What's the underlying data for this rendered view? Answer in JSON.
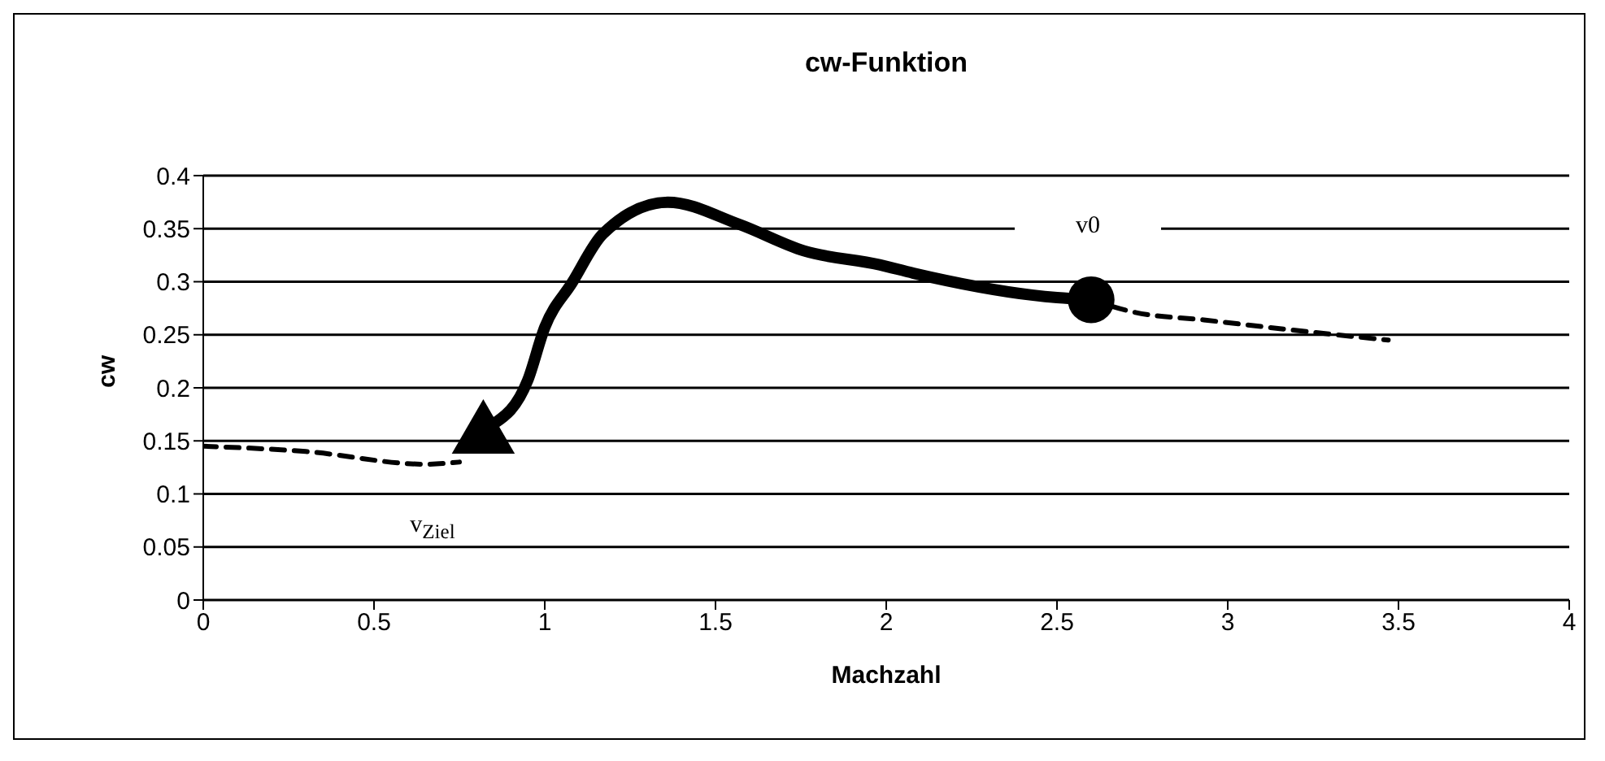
{
  "chart_data": {
    "type": "line",
    "title": "cw-Funktion",
    "xlabel": "Machzahl",
    "ylabel": "cw",
    "xlim": [
      0,
      4
    ],
    "xticks": [
      0,
      0.5,
      1,
      1.5,
      2,
      2.5,
      3,
      3.5,
      4
    ],
    "ylim": [
      0,
      0.4
    ],
    "yticks": [
      0,
      0.05,
      0.1,
      0.15,
      0.2,
      0.25,
      0.3,
      0.35,
      0.4
    ],
    "grid": "y",
    "series": [
      {
        "line_style": "dashed",
        "color": "#000000",
        "x": [
          0,
          0.3,
          0.65,
          0.75
        ],
        "values": [
          0.145,
          0.14,
          0.128,
          0.13
        ]
      },
      {
        "line_style": "solid",
        "color": "#000000",
        "x": [
          0.85,
          0.95,
          1.0,
          1.08,
          1.17,
          1.36,
          1.57,
          1.76,
          1.98,
          2.08,
          2.5,
          2.6
        ],
        "values": [
          0.166,
          0.207,
          0.257,
          0.299,
          0.345,
          0.375,
          0.354,
          0.329,
          0.316,
          0.308,
          0.285,
          0.283
        ]
      },
      {
        "line_style": "dashed",
        "color": "#000000",
        "x": [
          2.6,
          2.73,
          2.93,
          3.23,
          3.47
        ],
        "values": [
          0.283,
          0.271,
          0.264,
          0.253,
          0.245
        ]
      },
      {
        "type": "scatter",
        "marker": "triangle",
        "color": "#000000",
        "x": [
          0.82
        ],
        "values": [
          0.155
        ]
      },
      {
        "type": "scatter",
        "marker": "circle",
        "color": "#000000",
        "x": [
          2.6
        ],
        "values": [
          0.283
        ]
      }
    ],
    "annotations": [
      "v0",
      "v$_{Ziel}$"
    ]
  }
}
